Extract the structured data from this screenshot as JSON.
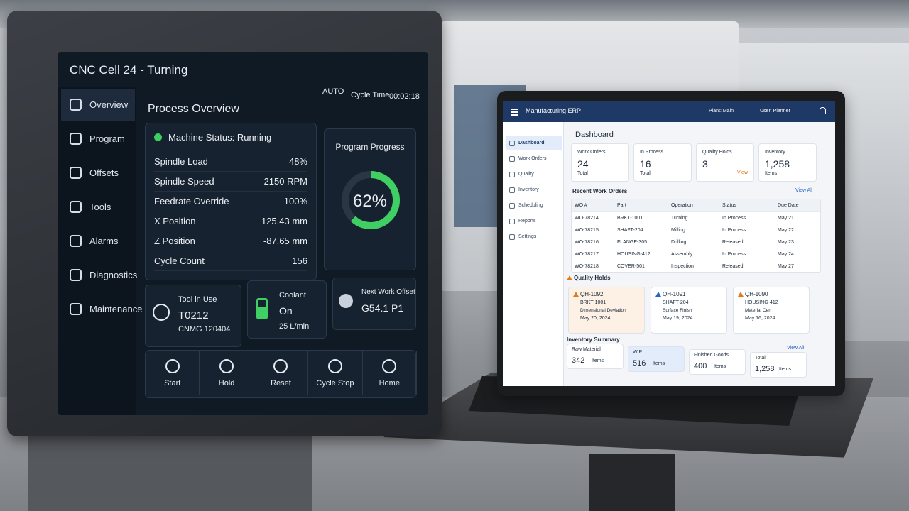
{
  "cnc": {
    "title": "CNC Cell 24 - Turning",
    "mode": "AUTO",
    "cycle_time_label": "Cycle Time",
    "cycle_time": "00:02:18",
    "nav": [
      "Overview",
      "Program",
      "Offsets",
      "Tools",
      "Alarms",
      "Diagnostics",
      "Maintenance"
    ],
    "section_title": "Process Overview",
    "machine_status": "Machine Status: Running",
    "metrics": [
      {
        "label": "Spindle Load",
        "value": "48%"
      },
      {
        "label": "Spindle Speed",
        "value": "2150 RPM"
      },
      {
        "label": "Feedrate Override",
        "value": "100%"
      },
      {
        "label": "X Position",
        "value": "125.43 mm"
      },
      {
        "label": "Z Position",
        "value": "-87.65 mm"
      },
      {
        "label": "Cycle Count",
        "value": "156"
      }
    ],
    "progress": {
      "title": "Program Progress",
      "value": 62,
      "label": "62%"
    },
    "tool": {
      "title": "Tool in Use",
      "id": "T0212",
      "insert": "CNMG 120404"
    },
    "coolant": {
      "title": "Coolant",
      "state": "On",
      "flow": "25 L/min"
    },
    "offset": {
      "title": "Next Work Offset",
      "value": "G54.1 P1"
    },
    "buttons": [
      "Start",
      "Hold",
      "Reset",
      "Cycle Stop",
      "Home"
    ]
  },
  "erp": {
    "app_title": "Manufacturing ERP",
    "plant": "Plant: Main",
    "user": "User: Planner",
    "nav": [
      "Dashboard",
      "Work Orders",
      "Quality",
      "Inventory",
      "Scheduling",
      "Reports",
      "Settings"
    ],
    "page_title": "Dashboard",
    "kpis": [
      {
        "label": "Work Orders",
        "value": "24",
        "sub": "Total"
      },
      {
        "label": "In Process",
        "value": "16",
        "sub": "Total"
      },
      {
        "label": "Quality Holds",
        "value": "3",
        "sub": "View"
      },
      {
        "label": "Inventory",
        "value": "1,258",
        "sub": "Items"
      }
    ],
    "work_orders": {
      "title": "Recent Work Orders",
      "link": "View All",
      "columns": [
        "WO #",
        "Part",
        "Operation",
        "Status",
        "Due Date"
      ],
      "rows": [
        [
          "WO-78214",
          "BRKT-1001",
          "Turning",
          "In Process",
          "May 21"
        ],
        [
          "WO-78215",
          "SHAFT-204",
          "Milling",
          "In Process",
          "May 22"
        ],
        [
          "WO-78216",
          "FLANGE-305",
          "Drilling",
          "Released",
          "May 23"
        ],
        [
          "WO-78217",
          "HOUSING-412",
          "Assembly",
          "In Process",
          "May 24"
        ],
        [
          "WO-78218",
          "COVER-501",
          "Inspection",
          "Released",
          "May 27"
        ]
      ]
    },
    "quality_holds": {
      "title": "Quality Holds",
      "items": [
        {
          "id": "QH-1092",
          "part": "BRKT-1001",
          "reason": "Dimensional Deviation",
          "date": "May 20, 2024"
        },
        {
          "id": "QH-1091",
          "part": "SHAFT-204",
          "reason": "Surface Finish",
          "date": "May 19, 2024"
        },
        {
          "id": "QH-1090",
          "part": "HOUSING-412",
          "reason": "Material Cert",
          "date": "May 16, 2024"
        }
      ]
    },
    "inventory": {
      "title": "Inventory Summary",
      "link": "View All",
      "items": [
        {
          "label": "Raw Material",
          "value": "342",
          "unit": "Items"
        },
        {
          "label": "WIP",
          "value": "516",
          "unit": "Items"
        },
        {
          "label": "Finished Goods",
          "value": "400",
          "unit": "Items"
        },
        {
          "label": "Total",
          "value": "1,258",
          "unit": "Items"
        }
      ]
    }
  }
}
